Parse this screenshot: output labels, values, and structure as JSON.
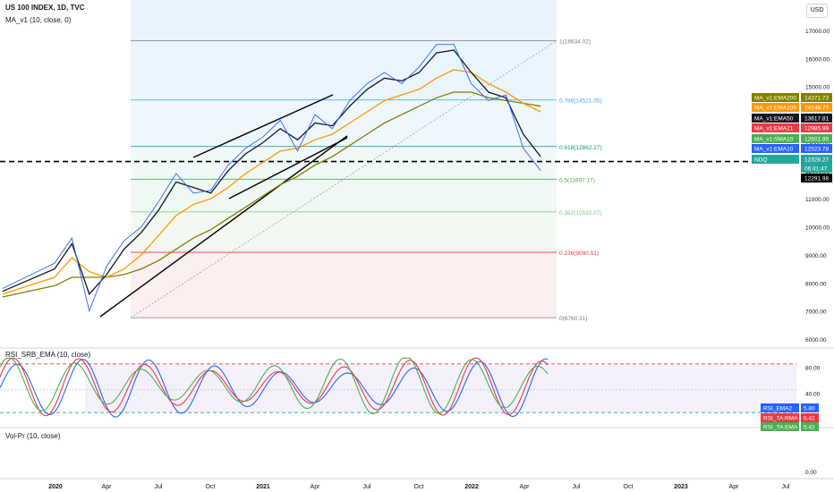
{
  "header": {
    "symbol_line": "US 100 INDEX, 1D, TVC",
    "ma_line": "MA_v1 (10, close, 0)",
    "usd_button": "USD"
  },
  "panes": {
    "rsi_title": "RSI_SRB_EMA (10, close)",
    "vol_title": "Vol-Pr (10, close)"
  },
  "chart_data": [
    {
      "type": "line",
      "title": "US 100 INDEX, 1D, TVC",
      "x_ticks": [
        "2020",
        "Apr",
        "Jul",
        "Oct",
        "2021",
        "Apr",
        "Jul",
        "Oct",
        "2022",
        "Apr",
        "Jul",
        "Oct",
        "2023",
        "Apr",
        "Jul"
      ],
      "y_ticks": [
        "17000.00",
        "16000.00",
        "15000.00",
        "14000.00",
        "13000.00",
        "12000.00",
        "11000.00",
        "10000.00",
        "9000.00",
        "8000.00",
        "7000.00",
        "6000.00"
      ],
      "y_range": [
        6000,
        17500
      ],
      "grid": false,
      "series": [
        {
          "name": "Price",
          "color": "#2962ff",
          "x": [
            "2019-10",
            "2020-01",
            "2020-02",
            "2020-03",
            "2020-04",
            "2020-05",
            "2020-06",
            "2020-07",
            "2020-08",
            "2020-09",
            "2020-10",
            "2020-11",
            "2020-12",
            "2021-01",
            "2021-02",
            "2021-03",
            "2021-04",
            "2021-05",
            "2021-06",
            "2021-07",
            "2021-08",
            "2021-09",
            "2021-10",
            "2021-11",
            "2021-12",
            "2022-01",
            "2022-02",
            "2022-03",
            "2022-04",
            "2022-05"
          ],
          "y": [
            7800,
            8700,
            9600,
            7000,
            8600,
            9500,
            10000,
            10900,
            11900,
            11200,
            11300,
            12200,
            12800,
            13200,
            13800,
            12700,
            14000,
            13500,
            14500,
            15100,
            15500,
            15100,
            15700,
            16500,
            16500,
            15100,
            14500,
            14700,
            12800,
            12000
          ]
        },
        {
          "name": "EMA10",
          "color": "#131722",
          "x": [
            "2019-10",
            "2020-01",
            "2020-02",
            "2020-03",
            "2020-04",
            "2020-05",
            "2020-06",
            "2020-07",
            "2020-08",
            "2020-09",
            "2020-10",
            "2020-11",
            "2020-12",
            "2021-01",
            "2021-02",
            "2021-03",
            "2021-04",
            "2021-05",
            "2021-06",
            "2021-07",
            "2021-08",
            "2021-09",
            "2021-10",
            "2021-11",
            "2021-12",
            "2022-01",
            "2022-02",
            "2022-03",
            "2022-04",
            "2022-05"
          ],
          "y": [
            7700,
            8500,
            9400,
            7600,
            8300,
            9200,
            9800,
            10600,
            11600,
            11400,
            11200,
            12000,
            12600,
            13000,
            13500,
            13100,
            13700,
            13600,
            14300,
            14900,
            15300,
            15200,
            15500,
            16200,
            16300,
            15500,
            14800,
            14600,
            13300,
            12500
          ]
        },
        {
          "name": "EMA50",
          "color": "#ff9800",
          "x": [
            "2019-10",
            "2020-01",
            "2020-02",
            "2020-03",
            "2020-04",
            "2020-05",
            "2020-06",
            "2020-07",
            "2020-08",
            "2020-09",
            "2020-10",
            "2020-11",
            "2020-12",
            "2021-01",
            "2021-02",
            "2021-03",
            "2021-04",
            "2021-05",
            "2021-06",
            "2021-07",
            "2021-08",
            "2021-09",
            "2021-10",
            "2021-11",
            "2021-12",
            "2022-01",
            "2022-02",
            "2022-03",
            "2022-04",
            "2022-05"
          ],
          "y": [
            7600,
            8200,
            8900,
            8400,
            8200,
            8500,
            9000,
            9700,
            10400,
            10800,
            11000,
            11400,
            11900,
            12300,
            12700,
            12800,
            13100,
            13300,
            13700,
            14100,
            14500,
            14700,
            14900,
            15300,
            15600,
            15500,
            15100,
            14800,
            14400,
            14100
          ]
        },
        {
          "name": "EMA200",
          "color": "#808000",
          "x": [
            "2019-10",
            "2020-01",
            "2020-02",
            "2020-03",
            "2020-04",
            "2020-05",
            "2020-06",
            "2020-07",
            "2020-08",
            "2020-09",
            "2020-10",
            "2020-11",
            "2020-12",
            "2021-01",
            "2021-02",
            "2021-03",
            "2021-04",
            "2021-05",
            "2021-06",
            "2021-07",
            "2021-08",
            "2021-09",
            "2021-10",
            "2021-11",
            "2021-12",
            "2022-01",
            "2022-02",
            "2022-03",
            "2022-04",
            "2022-05"
          ],
          "y": [
            7500,
            7900,
            8200,
            8200,
            8200,
            8300,
            8500,
            8800,
            9200,
            9600,
            9900,
            10300,
            10700,
            11100,
            11500,
            11800,
            12200,
            12500,
            12900,
            13300,
            13700,
            14000,
            14300,
            14600,
            14800,
            14800,
            14600,
            14500,
            14400,
            14300
          ]
        }
      ],
      "fibonacci_levels": [
        {
          "label": "1(16634.02)",
          "value": 16634.02,
          "color": "#787b86"
        },
        {
          "label": "0.786(14521.05)",
          "value": 14521.05,
          "color": "#42a5f5"
        },
        {
          "label": "0.618(12862.27)",
          "value": 12862.27,
          "color": "#089981"
        },
        {
          "label": "0.5(11697.17)",
          "value": 11697.17,
          "color": "#4caf50"
        },
        {
          "label": "0.382(10532.07)",
          "value": 10532.07,
          "color": "#81c784"
        },
        {
          "label": "0.236(9090.51)",
          "value": 9090.51,
          "color": "#f23645"
        },
        {
          "label": "0(6760.31)",
          "value": 6760.31,
          "color": "#787b86"
        }
      ],
      "dashed_level": 12328.27,
      "price_tags": [
        {
          "label": "MA_v1:EMA200",
          "value": "14371.73",
          "color": "#808000"
        },
        {
          "label": "MA_v1:EMA100",
          "value": "14148.77",
          "color": "#ff9800"
        },
        {
          "label": "MA_v1:EMA50",
          "value": "13617.81",
          "color": "#131722"
        },
        {
          "label": "MA_v1:EMA21",
          "value": "12985.99",
          "color": "#f23645"
        },
        {
          "label": "MA_v1:SMA10",
          "value": "12601.95",
          "color": "#4caf50"
        },
        {
          "label": "MA_v1:EMA10",
          "value": "12523.78",
          "color": "#2962ff"
        },
        {
          "label": "NDQ",
          "value": "12328.27",
          "color": "#26a69a",
          "sub": "06:41:47"
        },
        {
          "label": "",
          "value": "12291.98",
          "color": "#000000"
        }
      ]
    },
    {
      "type": "line",
      "title": "RSI_SRB_EMA (10, close)",
      "y_ticks": [
        "80.00",
        "40.00",
        "0.00"
      ],
      "y_range": [
        -5,
        100
      ],
      "overbought": 85,
      "oversold": 10,
      "series": [
        {
          "name": "RSI_EMA2",
          "color": "#2962ff",
          "last": "5.80"
        },
        {
          "name": "RSI_TA:RMA",
          "color": "#f23645",
          "last": "5.42"
        },
        {
          "name": "RSI_TA:EMA",
          "color": "#4caf50",
          "last": "5.42"
        }
      ]
    },
    {
      "type": "line",
      "title": "Vol-Pr (10, close)",
      "y_ticks": [
        "0.00"
      ]
    }
  ]
}
